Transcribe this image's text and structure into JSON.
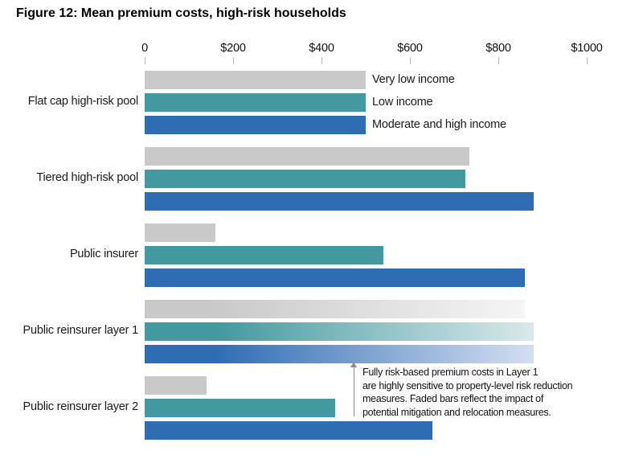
{
  "title": "Figure 12: Mean premium costs, high-risk households",
  "chart_data": {
    "type": "bar",
    "orientation": "horizontal",
    "title": "Figure 12: Mean premium costs, high-risk households",
    "xlabel": "",
    "ylabel": "",
    "xlim": [
      0,
      1000
    ],
    "x_tick_labels": [
      "0",
      "$200",
      "$400",
      "$600",
      "$800",
      "$1000"
    ],
    "x_tick_values": [
      0,
      200,
      400,
      600,
      800,
      1000
    ],
    "grid": false,
    "legend_position": "right-of-first-group",
    "categories": [
      "Flat cap high-risk pool",
      "Tiered high-risk pool",
      "Public insurer",
      "Public reinsurer layer 1",
      "Public reinsurer layer 2"
    ],
    "series": [
      {
        "name": "Very low income",
        "color": "#c9c9c9",
        "fade_to": "#f5f5f5",
        "values": [
          500,
          735,
          160,
          860,
          140
        ]
      },
      {
        "name": "Low income",
        "color": "#42999f",
        "fade_to": "#d9e9ea",
        "values": [
          500,
          725,
          540,
          880,
          430
        ]
      },
      {
        "name": "Moderate and high income",
        "color": "#2e6db4",
        "fade_to": "#d4def0",
        "values": [
          500,
          880,
          860,
          880,
          650
        ]
      }
    ],
    "faded_categories": [
      "Public reinsurer layer 1"
    ]
  },
  "annotation": {
    "text": "Fully risk-based premium costs in Layer 1\nare highly sensitive to property-level risk reduction\nmeasures. Faded bars reflect the impact of\npotential mitigation and relocation measures.",
    "arrow_direction": "up",
    "arrow_color": "#8c8c8c"
  },
  "colors": {
    "background": "#ffffff",
    "tick_mark": "#b5b5b5",
    "text": "#111111"
  }
}
